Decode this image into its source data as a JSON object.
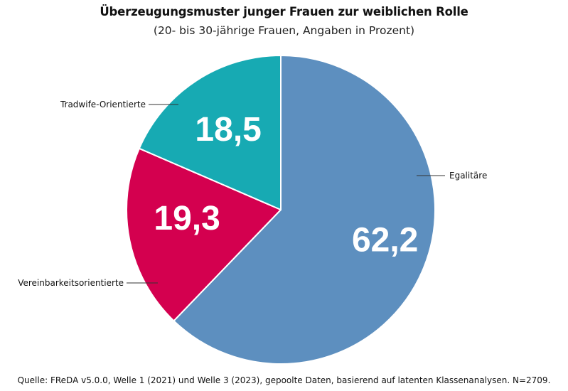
{
  "chart_data": {
    "type": "pie",
    "title": "Überzeugungsmuster junger Frauen zur weiblichen Rolle",
    "subtitle": "(20- bis 30-jährige Frauen, Angaben in Prozent)",
    "source": "Quelle: FReDA v5.0.0, Welle 1 (2021) und Welle 3 (2023), gepoolte Daten, basierend auf latenten Klassenanalysen. N=2709.",
    "slices": [
      {
        "label": "Egalitäre",
        "value": 62.2,
        "value_label": "62,2",
        "color": "#5d8fbf"
      },
      {
        "label": "Vereinbarkeitsorientierte",
        "value": 19.3,
        "value_label": "19,3",
        "color": "#d4004f"
      },
      {
        "label": "Tradwife-Orientierte",
        "value": 18.5,
        "value_label": "18,5",
        "color": "#17aab3"
      }
    ],
    "start": "12 o'clock",
    "direction": "clockwise",
    "legend": "none",
    "category_labels": "outside with leader lines",
    "value_labels": "inside slices, white bold"
  }
}
